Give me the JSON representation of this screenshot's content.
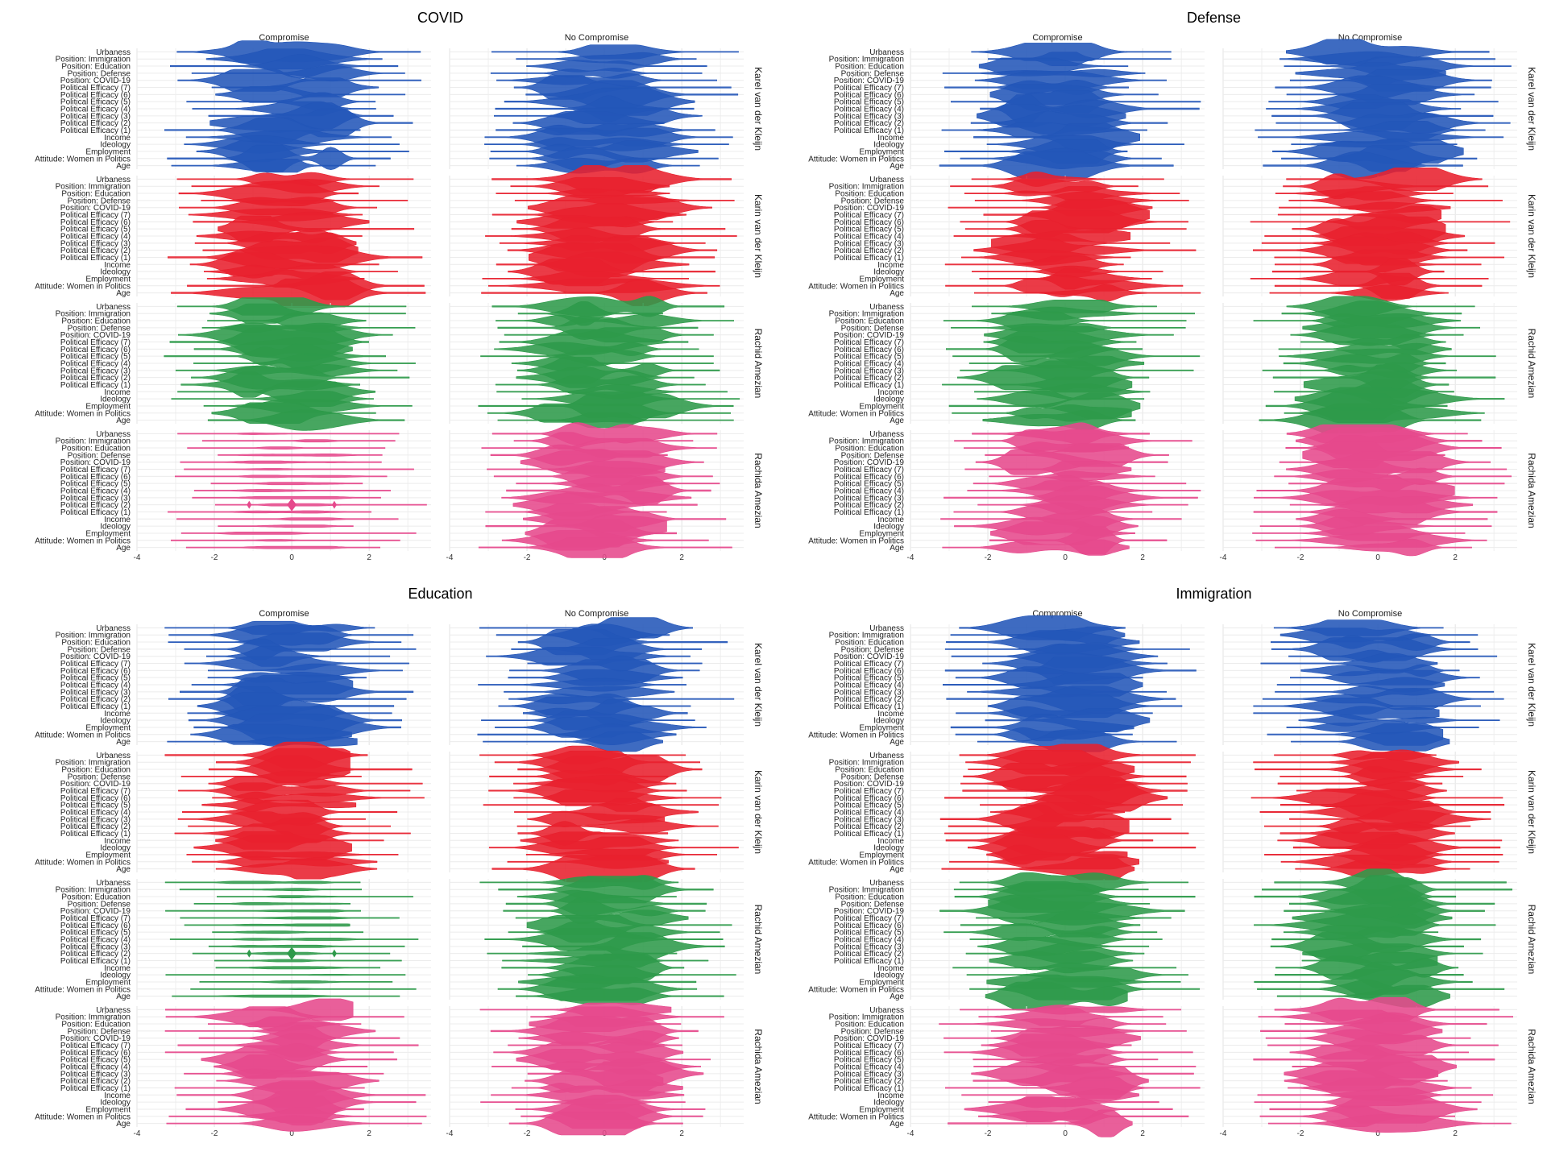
{
  "chart_data": [
    {
      "type": "violin",
      "title": "COVID",
      "facet_columns": [
        "Compromise",
        "No Compromise"
      ],
      "facet_rows": [
        "Karel van der Kleijn",
        "Karin van der Kleijn",
        "Rachid Amezian",
        "Rachida Amezian"
      ],
      "row_colors": [
        "#2356b8",
        "#e8202e",
        "#2e9a4a",
        "#e6498c"
      ],
      "categories": [
        "Urbaness",
        "Position: Immigration",
        "Position: Education",
        "Position: Defense",
        "Position: COVID-19",
        "Political Efficacy (7)",
        "Political Efficacy (6)",
        "Political Efficacy (5)",
        "Political Efficacy (4)",
        "Political Efficacy (3)",
        "Political Efficacy (2)",
        "Political Efficacy (1)",
        "Income",
        "Ideology",
        "Employment",
        "Attitude: Women in Politics",
        "Age"
      ],
      "x_ticks": [
        "-4",
        "-2",
        "0",
        "2"
      ],
      "xlim": [
        -4,
        3.6
      ],
      "grid": true
    },
    {
      "type": "violin",
      "title": "Defense",
      "facet_columns": [
        "Compromise",
        "No Compromise"
      ],
      "facet_rows": [
        "Karel van der Kleijn",
        "Karin van der Kleijn",
        "Rachid Amezian",
        "Rachida Amezian"
      ],
      "row_colors": [
        "#2356b8",
        "#e8202e",
        "#2e9a4a",
        "#e6498c"
      ],
      "categories": [
        "Urbaness",
        "Position: Immigration",
        "Position: Education",
        "Position: Defense",
        "Position: COVID-19",
        "Political Efficacy (7)",
        "Political Efficacy (6)",
        "Political Efficacy (5)",
        "Political Efficacy (4)",
        "Political Efficacy (3)",
        "Political Efficacy (2)",
        "Political Efficacy (1)",
        "Income",
        "Ideology",
        "Employment",
        "Attitude: Women in Politics",
        "Age"
      ],
      "x_ticks": [
        "-4",
        "-2",
        "0",
        "2"
      ],
      "xlim": [
        -4,
        3.6
      ],
      "grid": true
    },
    {
      "type": "violin",
      "title": "Education",
      "facet_columns": [
        "Compromise",
        "No Compromise"
      ],
      "facet_rows": [
        "Karel van der Kleijn",
        "Karin van der Kleijn",
        "Rachid Amezian",
        "Rachida Amezian"
      ],
      "row_colors": [
        "#2356b8",
        "#e8202e",
        "#2e9a4a",
        "#e6498c"
      ],
      "categories": [
        "Urbaness",
        "Position: Immigration",
        "Position: Education",
        "Position: Defense",
        "Position: COVID-19",
        "Political Efficacy (7)",
        "Political Efficacy (6)",
        "Political Efficacy (5)",
        "Political Efficacy (4)",
        "Political Efficacy (3)",
        "Political Efficacy (2)",
        "Political Efficacy (1)",
        "Income",
        "Ideology",
        "Employment",
        "Attitude: Women in Politics",
        "Age"
      ],
      "x_ticks": [
        "-4",
        "-2",
        "0",
        "2"
      ],
      "xlim": [
        -4,
        3.6
      ],
      "grid": true
    },
    {
      "type": "violin",
      "title": "Immigration",
      "facet_columns": [
        "Compromise",
        "No Compromise"
      ],
      "facet_rows": [
        "Karel van der Kleijn",
        "Karin van der Kleijn",
        "Rachid Amezian",
        "Rachida Amezian"
      ],
      "row_colors": [
        "#2356b8",
        "#e8202e",
        "#2e9a4a",
        "#e6498c"
      ],
      "categories": [
        "Urbaness",
        "Position: Immigration",
        "Position: Education",
        "Position: Defense",
        "Position: COVID-19",
        "Political Efficacy (7)",
        "Political Efficacy (6)",
        "Political Efficacy (5)",
        "Political Efficacy (4)",
        "Political Efficacy (3)",
        "Political Efficacy (2)",
        "Political Efficacy (1)",
        "Income",
        "Ideology",
        "Employment",
        "Attitude: Women in Politics",
        "Age"
      ],
      "x_ticks": [
        "-4",
        "-2",
        "0",
        "2"
      ],
      "xlim": [
        -4,
        3.6
      ],
      "grid": true
    }
  ],
  "sparse_facets": [
    {
      "panel": "COVID",
      "row": "Rachida Amezian",
      "column": "Compromise"
    },
    {
      "panel": "Education",
      "row": "Rachid Amezian",
      "column": "Compromise"
    }
  ]
}
